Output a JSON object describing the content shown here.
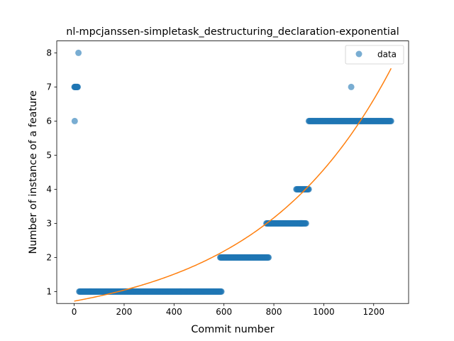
{
  "chart_data": {
    "type": "scatter",
    "title": "nl-mpcjanssen-simpletask_destructuring_declaration-exponential",
    "xlabel": "Commit number",
    "ylabel": "Number of instance of a feature",
    "xlim": [
      -70,
      1340
    ],
    "ylim": [
      0.65,
      8.35
    ],
    "xticks": [
      0,
      200,
      400,
      600,
      800,
      1000,
      1200
    ],
    "yticks": [
      1,
      2,
      3,
      4,
      5,
      6,
      7,
      8
    ],
    "grid": false,
    "legend": {
      "position": "top-right",
      "entries": [
        "data"
      ]
    },
    "colors": {
      "data": "#1f77b4",
      "fit": "#ff7f0e"
    },
    "series": [
      {
        "name": "data",
        "kind": "scatter",
        "segments": [
          {
            "x_start": 1,
            "x_end": 14,
            "step": 1,
            "y": 7
          },
          {
            "x_start": 20,
            "x_end": 590,
            "step": 2,
            "y": 1
          },
          {
            "x_start": 585,
            "x_end": 780,
            "step": 2,
            "y": 2
          },
          {
            "x_start": 770,
            "x_end": 915,
            "step": 2,
            "y": 3
          },
          {
            "x_start": 905,
            "x_end": 930,
            "step": 2,
            "y": 3
          },
          {
            "x_start": 890,
            "x_end": 940,
            "step": 2,
            "y": 4
          },
          {
            "x_start": 940,
            "x_end": 1270,
            "step": 2,
            "y": 6
          }
        ],
        "points": [
          {
            "x": 2,
            "y": 6
          },
          {
            "x": 17,
            "y": 8
          },
          {
            "x": 1110,
            "y": 7
          }
        ]
      },
      {
        "kind": "line",
        "model": "exponential",
        "a": 0.72,
        "b": 0.00185,
        "x_start": 0,
        "x_end": 1270
      }
    ]
  }
}
